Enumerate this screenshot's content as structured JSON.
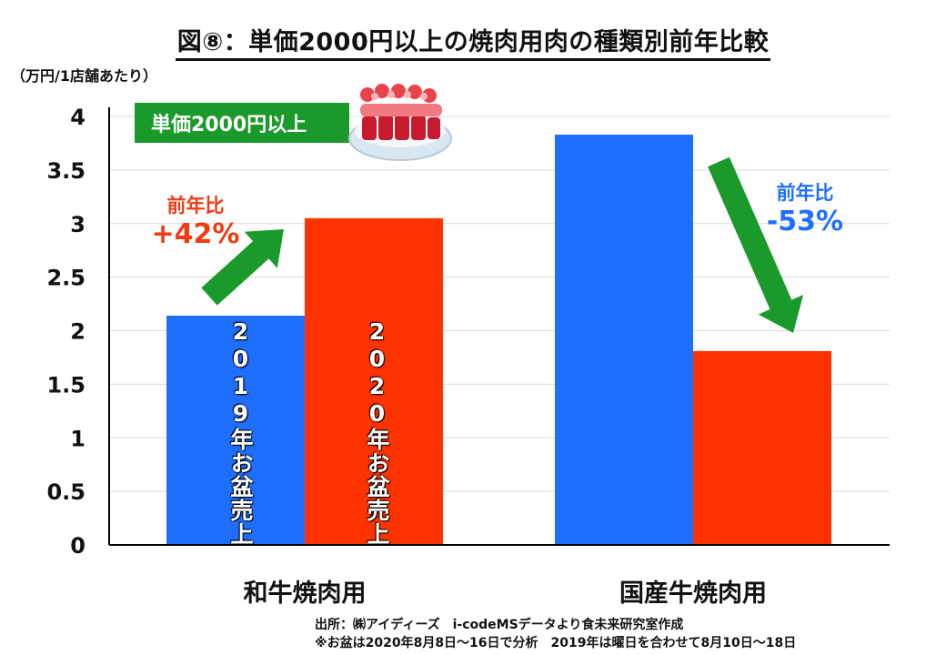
{
  "title": "図⑧：単価2000円以上の焼肉用肉の種類別前年比較",
  "unit_label": "（万円/1店舗あたり）",
  "banner": "単価2000円以上",
  "callouts": {
    "wagyu": {
      "label": "前年比",
      "value": "+42%"
    },
    "kokusan": {
      "label": "前年比",
      "value": "-53%"
    }
  },
  "bar_labels": {
    "y2019": "2019年お盆売上",
    "y2020": "2020年お盆売上"
  },
  "footer": {
    "source": "出所：㈱アイディーズ　i-codeMSデータより食未来研究室作成",
    "note": "※お盆は2020年8月8日～16日で分析　2019年は曜日を合わせて8月10日～18日"
  },
  "colors": {
    "y2019": "#1f6fff",
    "y2020": "#ff3300",
    "arrow": "#1a9a2a",
    "grid": "#d9d9d9"
  },
  "chart_data": {
    "type": "bar",
    "categories": [
      "和牛焼肉用",
      "国産牛焼肉用"
    ],
    "series": [
      {
        "name": "2019年お盆売上",
        "values": [
          2.14,
          3.83
        ]
      },
      {
        "name": "2020年お盆売上",
        "values": [
          3.05,
          1.81
        ]
      }
    ],
    "yticks": [
      "0",
      "0.5",
      "1",
      "1.5",
      "2",
      "2.5",
      "3",
      "3.5",
      "4"
    ],
    "ylim": [
      0,
      4
    ],
    "grid": true
  }
}
